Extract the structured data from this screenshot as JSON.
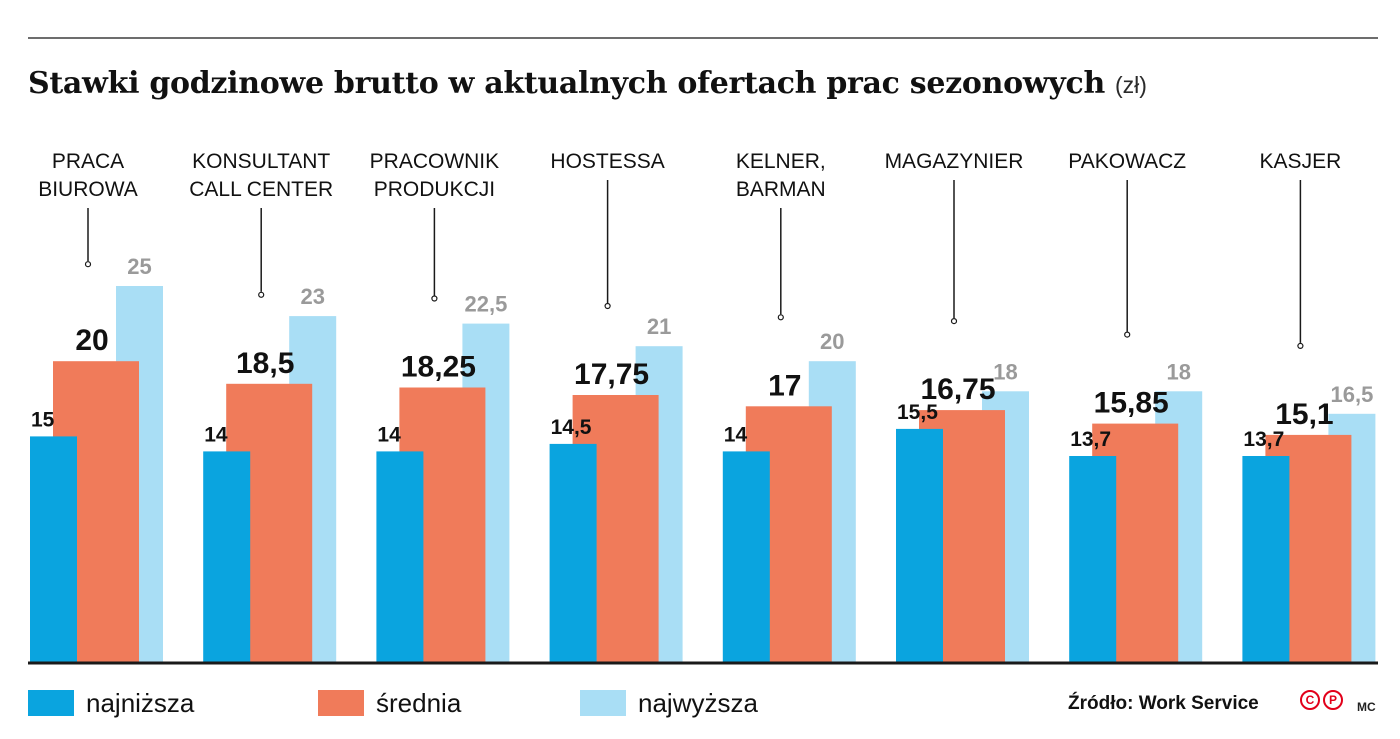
{
  "title": "Stawki godzinowe brutto w aktualnych ofertach prac sezonowych",
  "unit": "(zł)",
  "chart_data": {
    "type": "bar",
    "title": "Stawki godzinowe brutto w aktualnych ofertach prac sezonowych",
    "unit": "(zł)",
    "categories": [
      [
        "PRACA",
        "BIUROWA"
      ],
      [
        "KONSULTANT",
        "CALL CENTER"
      ],
      [
        "PRACOWNIK",
        "PRODUKCJI"
      ],
      [
        "HOSTESSA"
      ],
      [
        "KELNER,",
        "BARMAN"
      ],
      [
        "MAGAZYNIER"
      ],
      [
        "PAKOWACZ"
      ],
      [
        "KASJER"
      ]
    ],
    "series": [
      {
        "name": "najniższa",
        "color": "#0aa4df",
        "values": [
          15,
          14,
          14,
          14.5,
          14,
          15.5,
          13.7,
          13.7
        ],
        "labels": [
          "15",
          "14",
          "14",
          "14,5",
          "14",
          "15,5",
          "13,7",
          "13,7"
        ]
      },
      {
        "name": "średnia",
        "color": "#f07b5a",
        "values": [
          20,
          18.5,
          18.25,
          17.75,
          17,
          16.75,
          15.85,
          15.1
        ],
        "labels": [
          "20",
          "18,5",
          "18,25",
          "17,75",
          "17",
          "16,75",
          "15,85",
          "15,1"
        ]
      },
      {
        "name": "najwyższa",
        "color": "#a9def5",
        "values": [
          25,
          23,
          22.5,
          21,
          20,
          18,
          18,
          16.5
        ],
        "labels": [
          "25",
          "23",
          "22,5",
          "21",
          "20",
          "18",
          "18",
          "16,5"
        ]
      }
    ],
    "ylim": [
      0,
      25
    ],
    "grid": false,
    "legend": "bottom",
    "axis_color": "#1a1a1a",
    "label_colors": {
      "najniższa": "#111111",
      "średnia": "#111111",
      "najwyższa": "#9a9a9a"
    }
  },
  "legend": {
    "items": [
      {
        "label": "najniższa",
        "color": "#0aa4df"
      },
      {
        "label": "średnia",
        "color": "#f07b5a"
      },
      {
        "label": "najwyższa",
        "color": "#a9def5"
      }
    ]
  },
  "source": "Źródło: Work Service",
  "author": "MC",
  "logo": {
    "icon": "cp-logo-icon",
    "letters": [
      "C",
      "P"
    ],
    "color": "#e2001a"
  }
}
